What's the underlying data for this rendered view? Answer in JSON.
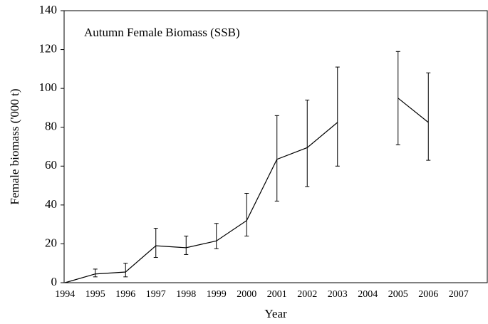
{
  "chart_data": {
    "type": "line",
    "title": "Autumn Female Biomass (SSB)",
    "x_label": "Year",
    "y_label": "Female biomass ('000 t)",
    "categories": [
      "1994",
      "1995",
      "1996",
      "1997",
      "1998",
      "1999",
      "2000",
      "2001",
      "2002",
      "2003",
      "2004",
      "2005",
      "2006",
      "2007"
    ],
    "series": [
      {
        "color": "#000000",
        "values": [
          0,
          4.5,
          5.5,
          19,
          18,
          21.5,
          32,
          63.5,
          69.5,
          82.5,
          null,
          95,
          82.5,
          null
        ],
        "lower": [
          null,
          3,
          3,
          13,
          14.5,
          17.5,
          24,
          42,
          49.5,
          60,
          null,
          71,
          63,
          null
        ],
        "upper": [
          null,
          7,
          10,
          28,
          24,
          30.5,
          46,
          86,
          94,
          111,
          null,
          119,
          108,
          null
        ]
      }
    ],
    "ylim": [
      0,
      140
    ],
    "yticks": [
      0,
      20,
      40,
      60,
      80,
      100,
      120,
      140
    ]
  }
}
